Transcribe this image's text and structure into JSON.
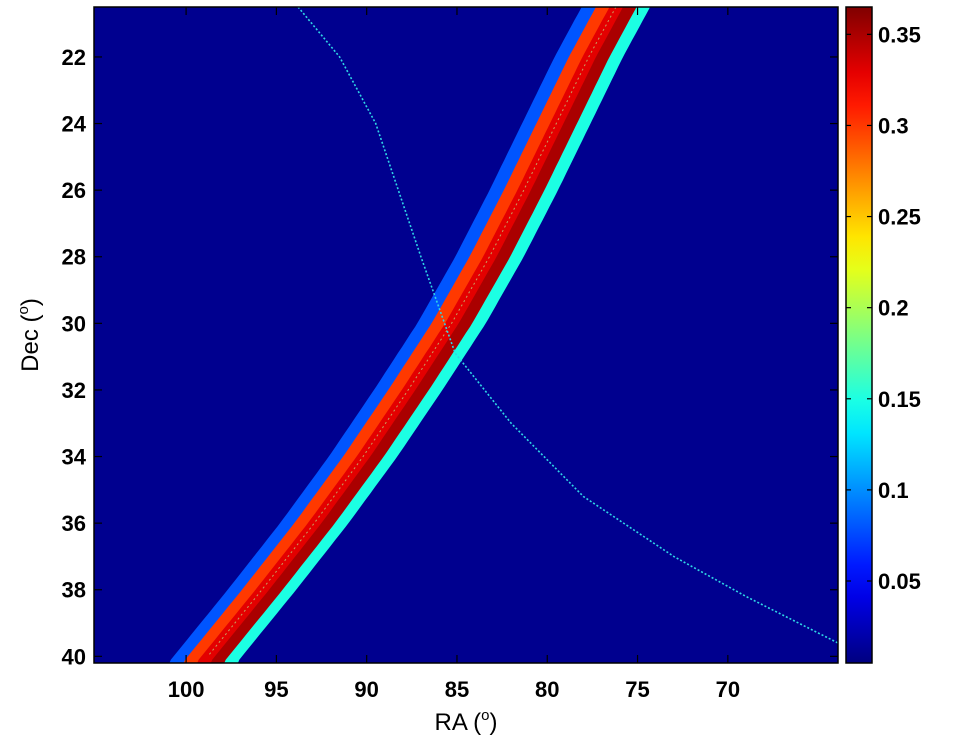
{
  "chart_data": {
    "type": "heatmap",
    "title": "",
    "xlabel": "RA (",
    "xlabel_sup": "o",
    "xlabel_tail": ")",
    "ylabel": "Dec (",
    "ylabel_sup": "o",
    "ylabel_tail": ")",
    "x_axis_reversed": true,
    "y_axis_reversed": true,
    "xlim": [
      105.1,
      63.9
    ],
    "ylim": [
      20.5,
      40.2
    ],
    "x_ticks": [
      100,
      95,
      90,
      85,
      80,
      75,
      70
    ],
    "x_tick_labels": [
      "100",
      "95",
      "90",
      "85",
      "80",
      "75",
      "70"
    ],
    "y_ticks": [
      22,
      24,
      26,
      28,
      30,
      32,
      34,
      36,
      38,
      40
    ],
    "y_tick_labels": [
      "22",
      "24",
      "26",
      "28",
      "30",
      "32",
      "34",
      "36",
      "38",
      "40"
    ],
    "colormap": "jet",
    "colorbar": {
      "range": [
        0.005,
        0.365
      ],
      "ticks": [
        0.05,
        0.1,
        0.15,
        0.2,
        0.25,
        0.3,
        0.35
      ],
      "tick_labels": [
        "0.05",
        "0.1",
        "0.15",
        "0.2",
        "0.25",
        "0.3",
        "0.35"
      ]
    },
    "background_value": 0.005,
    "band": {
      "description_values": "curved band of high probability; values across band from upper-left edge to lower-right edge",
      "centerline": [
        {
          "dec": 20.5,
          "ra": 76.2
        },
        {
          "dec": 22.0,
          "ra": 77.7
        },
        {
          "dec": 24.0,
          "ra": 79.5
        },
        {
          "dec": 26.0,
          "ra": 81.3
        },
        {
          "dec": 28.0,
          "ra": 83.2
        },
        {
          "dec": 30.0,
          "ra": 85.3
        },
        {
          "dec": 32.0,
          "ra": 87.7
        },
        {
          "dec": 34.0,
          "ra": 90.2
        },
        {
          "dec": 36.0,
          "ra": 92.9
        },
        {
          "dec": 38.0,
          "ra": 95.8
        },
        {
          "dec": 40.2,
          "ra": 99.1
        }
      ],
      "cross_profile": [
        {
          "offset_deg": -1.5,
          "value": 0.15
        },
        {
          "offset_deg": -0.75,
          "value": 0.35
        },
        {
          "offset_deg": 0.0,
          "value": 0.33
        },
        {
          "offset_deg": 0.75,
          "value": 0.3
        },
        {
          "offset_deg": 1.5,
          "value": 0.08
        }
      ]
    },
    "overlay_curve": {
      "color": "#2fd6e6",
      "points": [
        {
          "ra": 93.8,
          "dec": 20.5
        },
        {
          "ra": 91.5,
          "dec": 22.0
        },
        {
          "ra": 89.5,
          "dec": 24.0
        },
        {
          "ra": 87.0,
          "dec": 28.0
        },
        {
          "ra": 85.1,
          "dec": 30.9
        },
        {
          "ra": 82.0,
          "dec": 33.0
        },
        {
          "ra": 78.0,
          "dec": 35.2
        },
        {
          "ra": 73.0,
          "dec": 37.0
        },
        {
          "ra": 69.0,
          "dec": 38.2
        },
        {
          "ra": 63.9,
          "dec": 39.6
        }
      ]
    }
  }
}
